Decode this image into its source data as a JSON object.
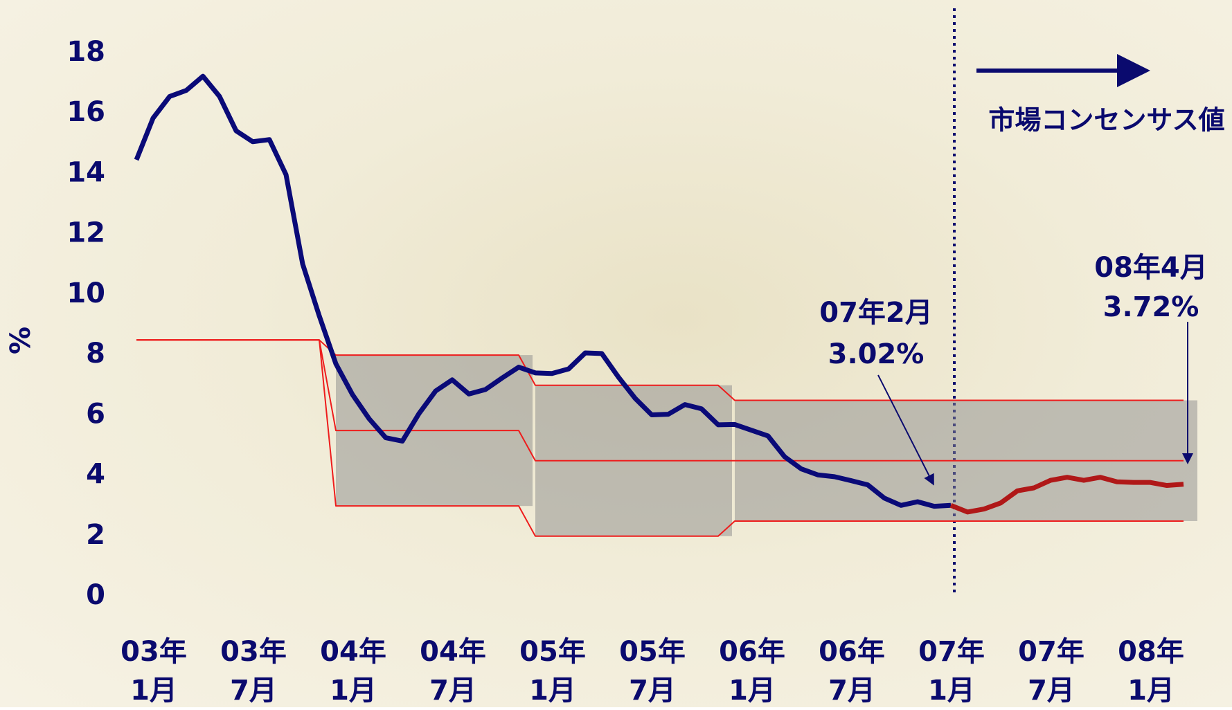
{
  "chart_data": {
    "type": "line",
    "y_label": "%",
    "ylim": [
      0,
      18
    ],
    "yticks": [
      0,
      2,
      4,
      6,
      8,
      10,
      12,
      14,
      16,
      18
    ],
    "grid": false,
    "categories": [
      "03年\n1月",
      null,
      null,
      null,
      null,
      null,
      "03年\n7月",
      null,
      null,
      null,
      null,
      null,
      "04年\n1月",
      null,
      null,
      null,
      null,
      null,
      "04年\n7月",
      null,
      null,
      null,
      null,
      null,
      "05年\n1月",
      null,
      null,
      null,
      null,
      null,
      "05年\n7月",
      null,
      null,
      null,
      null,
      null,
      "06年\n1月",
      null,
      null,
      null,
      null,
      null,
      "06年\n7月",
      null,
      null,
      null,
      null,
      null,
      "07年\n1月",
      null,
      null,
      null,
      null,
      null,
      "07年\n7月",
      null,
      null,
      null,
      null,
      null,
      "08年\n1月",
      null,
      null,
      null
    ],
    "series": [
      {
        "color": "#ee1c1c",
        "width": 2,
        "values": [
          8.5,
          8.5,
          8.5,
          8.5,
          8.5,
          8.5,
          8.5,
          8.5,
          8.5,
          8.5,
          8.5,
          8.5,
          8,
          8,
          8,
          8,
          8,
          8,
          8,
          8,
          8,
          8,
          8,
          8,
          7,
          7,
          7,
          7,
          7,
          7,
          7,
          7,
          7,
          7,
          7,
          7,
          6.5,
          6.5,
          6.5,
          6.5,
          6.5,
          6.5,
          6.5,
          6.5,
          6.5,
          6.5,
          6.5,
          6.5,
          6.5,
          6.5,
          6.5,
          6.5,
          6.5,
          6.5,
          6.5,
          6.5,
          6.5,
          6.5,
          6.5,
          6.5,
          6.5,
          6.5,
          6.5,
          6.5
        ]
      },
      {
        "color": "#ee1c1c",
        "width": 2,
        "values": [
          8.5,
          8.5,
          8.5,
          8.5,
          8.5,
          8.5,
          8.5,
          8.5,
          8.5,
          8.5,
          8.5,
          8.5,
          5.5,
          5.5,
          5.5,
          5.5,
          5.5,
          5.5,
          5.5,
          5.5,
          5.5,
          5.5,
          5.5,
          5.5,
          4.5,
          4.5,
          4.5,
          4.5,
          4.5,
          4.5,
          4.5,
          4.5,
          4.5,
          4.5,
          4.5,
          4.5,
          4.5,
          4.5,
          4.5,
          4.5,
          4.5,
          4.5,
          4.5,
          4.5,
          4.5,
          4.5,
          4.5,
          4.5,
          4.5,
          4.5,
          4.5,
          4.5,
          4.5,
          4.5,
          4.5,
          4.5,
          4.5,
          4.5,
          4.5,
          4.5,
          4.5,
          4.5,
          4.5,
          4.5
        ]
      },
      {
        "color": "#ee1c1c",
        "width": 2,
        "values": [
          8.5,
          8.5,
          8.5,
          8.5,
          8.5,
          8.5,
          8.5,
          8.5,
          8.5,
          8.5,
          8.5,
          8.5,
          3,
          3,
          3,
          3,
          3,
          3,
          3,
          3,
          3,
          3,
          3,
          3,
          2,
          2,
          2,
          2,
          2,
          2,
          2,
          2,
          2,
          2,
          2,
          2,
          2.5,
          2.5,
          2.5,
          2.5,
          2.5,
          2.5,
          2.5,
          2.5,
          2.5,
          2.5,
          2.5,
          2.5,
          2.5,
          2.5,
          2.5,
          2.5,
          2.5,
          2.5,
          2.5,
          2.5,
          2.5,
          2.5,
          2.5,
          2.5,
          2.5,
          2.5,
          2.5,
          2.5
        ]
      },
      {
        "color": "#0a0a78",
        "width": 7,
        "values": [
          14.47,
          15.85,
          16.57,
          16.77,
          17.24,
          16.57,
          15.43,
          15.07,
          15.14,
          13.98,
          11.02,
          9.3,
          7.71,
          6.69,
          5.89,
          5.26,
          5.15,
          6.06,
          6.81,
          7.18,
          6.71,
          6.86,
          7.24,
          7.6,
          7.41,
          7.39,
          7.54,
          8.07,
          8.05,
          7.27,
          6.57,
          6.02,
          6.04,
          6.36,
          6.22,
          5.69,
          5.7,
          5.51,
          5.32,
          4.63,
          4.23,
          4.03,
          3.97,
          3.84,
          3.7,
          3.26,
          3.02,
          3.14,
          2.99,
          3.02,
          null,
          null,
          null,
          null,
          null,
          null,
          null,
          null,
          null,
          null,
          null,
          null,
          null,
          null
        ]
      },
      {
        "color": "#b01818",
        "width": 7,
        "values": [
          null,
          null,
          null,
          null,
          null,
          null,
          null,
          null,
          null,
          null,
          null,
          null,
          null,
          null,
          null,
          null,
          null,
          null,
          null,
          null,
          null,
          null,
          null,
          null,
          null,
          null,
          null,
          null,
          null,
          null,
          null,
          null,
          null,
          null,
          null,
          null,
          null,
          null,
          null,
          null,
          null,
          null,
          null,
          null,
          null,
          null,
          null,
          null,
          null,
          3.02,
          2.8,
          2.9,
          3.1,
          3.5,
          3.6,
          3.85,
          3.95,
          3.85,
          3.95,
          3.8,
          3.78,
          3.78,
          3.68,
          3.72
        ]
      }
    ],
    "annotations": [
      {
        "lines": [
          "07年2月",
          "3.02%"
        ]
      },
      {
        "lines": [
          "08年4月",
          "3.72%"
        ]
      },
      {
        "lines": [
          "市場コンセンサス値"
        ]
      }
    ]
  }
}
